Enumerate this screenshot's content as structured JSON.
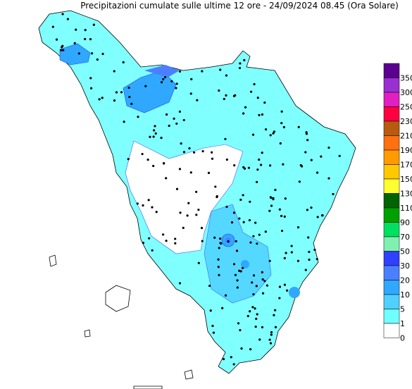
{
  "title": "Precipitazioni cumulate sulle ultime 12 ore - 24/09/2024 08.45 (Ora Solare)",
  "legend": {
    "labels": [
      350,
      300,
      250,
      230,
      210,
      190,
      170,
      150,
      130,
      110,
      90,
      70,
      50,
      30,
      20,
      10,
      5,
      1,
      0
    ],
    "colors": [
      "#5a0090",
      "#9a30d0",
      "#e020c0",
      "#ff0040",
      "#b85a10",
      "#ff7010",
      "#ff9a00",
      "#ffc800",
      "#ffff30",
      "#006400",
      "#00a000",
      "#00e060",
      "#80f0b0",
      "#3040ff",
      "#4a80ff",
      "#30a8ff",
      "#50d0ff",
      "#70ffff",
      "#ffffff"
    ]
  }
}
